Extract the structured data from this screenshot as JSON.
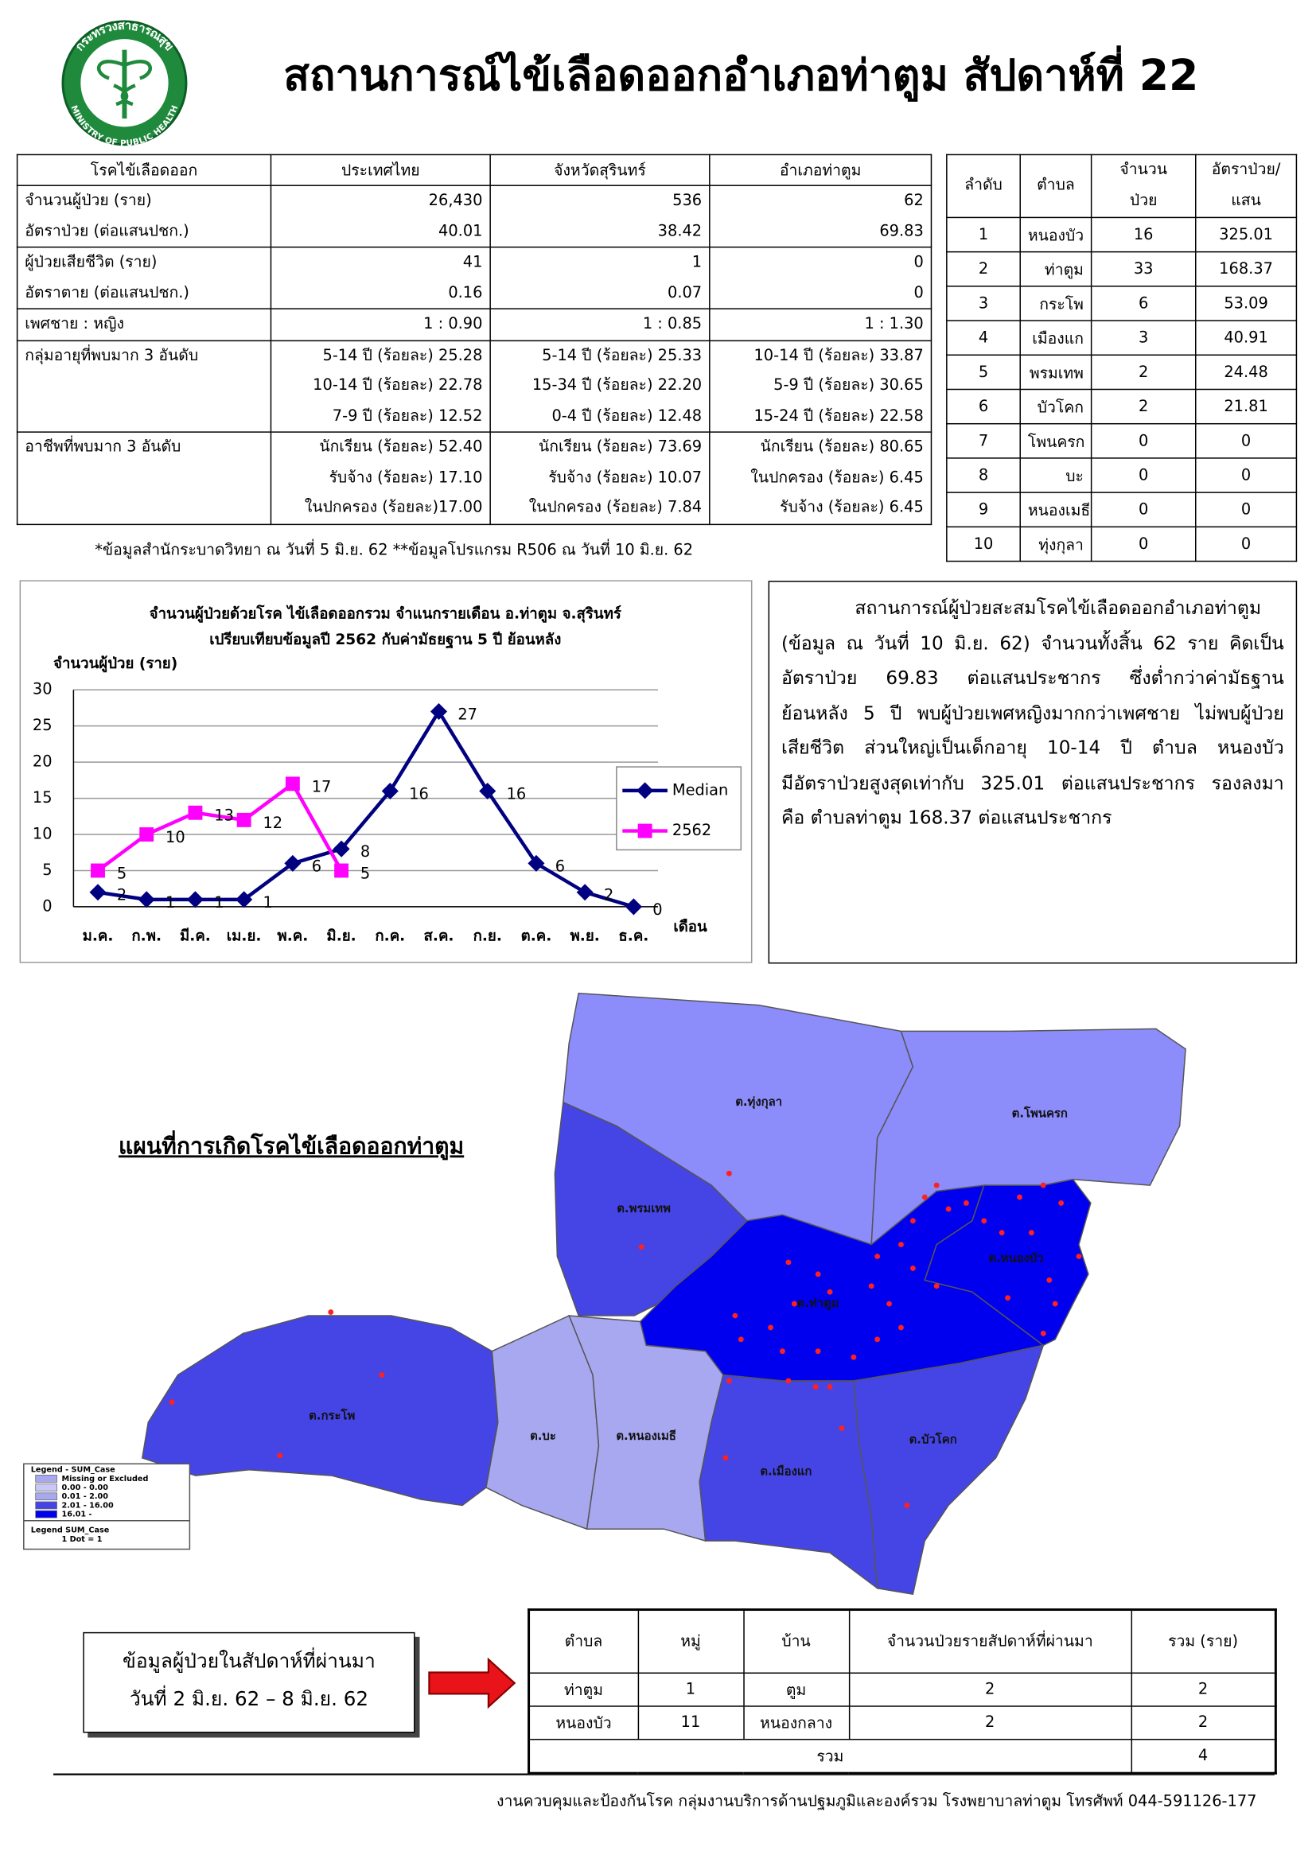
{
  "header": {
    "title": "สถานการณ์ไข้เลือดออกอำเภอท่าตูม สัปดาห์ที่ 22",
    "logo_top": "กระทรวงสาธารณสุข",
    "logo_bottom": "MINISTRY OF PUBLIC HEALTH"
  },
  "table_main": {
    "headers": [
      "โรคไข้เลือดออก",
      "ประเทศไทย",
      "จังหวัดสุรินทร์",
      "อำเภอท่าตูม"
    ],
    "rows": [
      [
        [
          "จำนวนผู้ป่วย (ราย)",
          "อัตราป่วย (ต่อแสนปชก.)"
        ],
        [
          "26,430",
          "40.01"
        ],
        [
          "536",
          "38.42"
        ],
        [
          "62",
          "69.83"
        ]
      ],
      [
        [
          "ผู้ป่วยเสียชีวิต (ราย)",
          "อัตราตาย (ต่อแสนปชก.)"
        ],
        [
          "41",
          "0.16"
        ],
        [
          "1",
          "0.07"
        ],
        [
          "0",
          "0"
        ]
      ],
      [
        [
          "เพศชาย : หญิง"
        ],
        [
          "1 : 0.90"
        ],
        [
          "1 : 0.85"
        ],
        [
          "1 : 1.30"
        ]
      ],
      [
        [
          "กลุ่มอายุที่พบมาก 3 อันดับ"
        ],
        [
          "5-14 ปี (ร้อยละ) 25.28",
          "10-14 ปี (ร้อยละ) 22.78",
          "7-9 ปี (ร้อยละ) 12.52"
        ],
        [
          "5-14 ปี (ร้อยละ) 25.33",
          "15-34 ปี (ร้อยละ) 22.20",
          "0-4 ปี (ร้อยละ) 12.48"
        ],
        [
          "10-14 ปี (ร้อยละ) 33.87",
          "5-9 ปี (ร้อยละ) 30.65",
          "15-24 ปี (ร้อยละ) 22.58"
        ]
      ],
      [
        [
          "อาชีพที่พบมาก 3 อันดับ"
        ],
        [
          "นักเรียน (ร้อยละ) 52.40",
          "รับจ้าง (ร้อยละ) 17.10",
          "ในปกครอง (ร้อยละ)17.00"
        ],
        [
          "นักเรียน (ร้อยละ) 73.69",
          "รับจ้าง (ร้อยละ) 10.07",
          "ในปกครอง (ร้อยละ) 7.84"
        ],
        [
          "นักเรียน (ร้อยละ) 80.65",
          "ในปกครอง (ร้อยละ) 6.45",
          "รับจ้าง (ร้อยละ) 6.45"
        ]
      ]
    ]
  },
  "note": "*ข้อมูลสำนักระบาดวิทยา ณ วันที่ 5 มิ.ย. 62 **ข้อมูลโปรแกรม R506 ณ วันที่ 10 มิ.ย. 62",
  "table_rank": {
    "headers": [
      [
        "ลำดับ"
      ],
      [
        "ตำบล"
      ],
      [
        "จำนวน",
        "ป่วย"
      ],
      [
        "อัตราป่วย/",
        "แสน"
      ]
    ],
    "rows": [
      [
        "1",
        "หนองบัว",
        "16",
        "325.01"
      ],
      [
        "2",
        "ท่าตูม",
        "33",
        "168.37"
      ],
      [
        "3",
        "กระโพ",
        "6",
        "53.09"
      ],
      [
        "4",
        "เมืองแก",
        "3",
        "40.91"
      ],
      [
        "5",
        "พรมเทพ",
        "2",
        "24.48"
      ],
      [
        "6",
        "บัวโคก",
        "2",
        "21.81"
      ],
      [
        "7",
        "โพนครก",
        "0",
        "0"
      ],
      [
        "8",
        "บะ",
        "0",
        "0"
      ],
      [
        "9",
        "หนองเมธี",
        "0",
        "0"
      ],
      [
        "10",
        "ทุ่งกุลา",
        "0",
        "0"
      ]
    ]
  },
  "chart_data": {
    "type": "line",
    "title": [
      "จำนวนผู้ป่วยด้วยโรค  ไข้เลือดออกรวม  จำแนกรายเดือน อ.ท่าตูม จ.สุรินทร์",
      "เปรียบเทียบข้อมูลปี  2562  กับค่ามัธยฐาน 5 ปี ย้อนหลัง"
    ],
    "y_label": "จำนวนผู้ป่วย (ราย)",
    "x_label": "เดือน",
    "categories": [
      "ม.ค.",
      "ก.พ.",
      "มี.ค.",
      "เม.ย.",
      "พ.ค.",
      "มิ.ย.",
      "ก.ค.",
      "ส.ค.",
      "ก.ย.",
      "ต.ค.",
      "พ.ย.",
      "ธ.ค."
    ],
    "series": [
      {
        "name": "Median",
        "color": "#000080",
        "values": [
          2,
          1,
          1,
          1,
          6,
          8,
          16,
          27,
          16,
          6,
          2,
          0
        ]
      },
      {
        "name": "2562",
        "color": "#ff00ff",
        "values": [
          5,
          10,
          13,
          12,
          17,
          5,
          null,
          null,
          null,
          null,
          null,
          null
        ]
      }
    ],
    "ylim": [
      0,
      30
    ],
    "yticks": [
      0,
      5,
      10,
      15,
      20,
      25,
      30
    ],
    "grid": true,
    "legend": "right"
  },
  "summary": {
    "lines": [
      "สถานการณ์ผู้ป่วยสะสมโรคไข้เลือดออกอำเภอท่าตูม",
      "(ข้อมูล ณ วันที่ 10 มิ.ย. 62)   จำนวนทั้งสิ้น 62 ราย คิดเป็น",
      "อัตราป่วย 69.83 ต่อแสนประชากร ซึ่งต่ำกว่าค่ามัธฐาน",
      "ย้อนหลัง 5 ปี พบผู้ป่วยเพศหญิงมากกว่าเพศชาย ไม่พบผู้ป่วย",
      "เสียชีวิต  ส่วนใหญ่เป็นเด็กอายุ 10-14 ปี ตำบล หนองบัว",
      "มีอัตราป่วยสูงสุดเท่ากับ 325.01 ต่อแสนประชากร รองลงมา",
      "คือ ตำบลท่าตูม  168.37 ต่อแสนประชากร"
    ]
  },
  "map": {
    "title": "แผนที่การเกิดโรคไข้เลือดออกท่าตูม",
    "labels": [
      "ต.ทุ่งกุลา",
      "ต.โพนครก",
      "ต.พรมเทพ",
      "ต.หนองบัว",
      "ต.ท่าตูม",
      "ต.กระโพ",
      "ต.บะ",
      "ต.หนองเมธี",
      "ต.เมืองแก",
      "ต.บัวโคก"
    ],
    "legend": [
      "Legend - SUM_Case",
      "Missing or Excluded",
      "0.00 - 0.00",
      "0.01 - 2.00",
      "2.01 - 16.00",
      "16.01 -",
      "Legend   SUM_Case",
      "1 Dot = 1"
    ]
  },
  "week_box": {
    "lines": [
      "ข้อมูลผู้ป่วยในสัปดาห์ที่ผ่านมา",
      "วันที่ 2 มิ.ย. 62 – 8 มิ.ย. 62"
    ]
  },
  "table_week": {
    "headers": [
      "ตำบล",
      "หมู่",
      "บ้าน",
      "จำนวนป่วยรายสัปดาห์ที่ผ่านมา",
      "รวม (ราย)"
    ],
    "rows": [
      [
        "ท่าตูม",
        "1",
        "ตูม",
        "2",
        "2"
      ],
      [
        "หนองบัว",
        "11",
        "หนองกลาง",
        "2",
        "2"
      ]
    ],
    "total": {
      "label": "รวม",
      "value": "4"
    }
  },
  "footer": "งานควบคุมและป้องกันโรค กลุ่มงานบริการด้านปฐมภูมิและองค์รวม  โรงพยาบาลท่าตูม  โทรศัพท์ 044-591126-177"
}
